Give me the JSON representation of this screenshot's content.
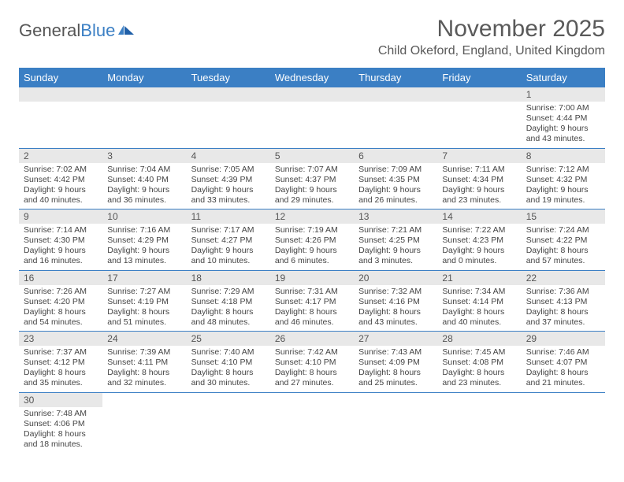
{
  "logo": {
    "text1": "General",
    "text2": "Blue"
  },
  "header": {
    "month": "November 2025",
    "location": "Child Okeford, England, United Kingdom"
  },
  "colors": {
    "header_bg": "#3b7fc4",
    "header_text": "#ffffff",
    "daynum_bg": "#e8e8e8",
    "row_border": "#3b7fc4",
    "body_text": "#444444"
  },
  "daynames": [
    "Sunday",
    "Monday",
    "Tuesday",
    "Wednesday",
    "Thursday",
    "Friday",
    "Saturday"
  ],
  "weeks": [
    [
      null,
      null,
      null,
      null,
      null,
      null,
      {
        "n": "1",
        "sr": "Sunrise: 7:00 AM",
        "ss": "Sunset: 4:44 PM",
        "d1": "Daylight: 9 hours",
        "d2": "and 43 minutes."
      }
    ],
    [
      {
        "n": "2",
        "sr": "Sunrise: 7:02 AM",
        "ss": "Sunset: 4:42 PM",
        "d1": "Daylight: 9 hours",
        "d2": "and 40 minutes."
      },
      {
        "n": "3",
        "sr": "Sunrise: 7:04 AM",
        "ss": "Sunset: 4:40 PM",
        "d1": "Daylight: 9 hours",
        "d2": "and 36 minutes."
      },
      {
        "n": "4",
        "sr": "Sunrise: 7:05 AM",
        "ss": "Sunset: 4:39 PM",
        "d1": "Daylight: 9 hours",
        "d2": "and 33 minutes."
      },
      {
        "n": "5",
        "sr": "Sunrise: 7:07 AM",
        "ss": "Sunset: 4:37 PM",
        "d1": "Daylight: 9 hours",
        "d2": "and 29 minutes."
      },
      {
        "n": "6",
        "sr": "Sunrise: 7:09 AM",
        "ss": "Sunset: 4:35 PM",
        "d1": "Daylight: 9 hours",
        "d2": "and 26 minutes."
      },
      {
        "n": "7",
        "sr": "Sunrise: 7:11 AM",
        "ss": "Sunset: 4:34 PM",
        "d1": "Daylight: 9 hours",
        "d2": "and 23 minutes."
      },
      {
        "n": "8",
        "sr": "Sunrise: 7:12 AM",
        "ss": "Sunset: 4:32 PM",
        "d1": "Daylight: 9 hours",
        "d2": "and 19 minutes."
      }
    ],
    [
      {
        "n": "9",
        "sr": "Sunrise: 7:14 AM",
        "ss": "Sunset: 4:30 PM",
        "d1": "Daylight: 9 hours",
        "d2": "and 16 minutes."
      },
      {
        "n": "10",
        "sr": "Sunrise: 7:16 AM",
        "ss": "Sunset: 4:29 PM",
        "d1": "Daylight: 9 hours",
        "d2": "and 13 minutes."
      },
      {
        "n": "11",
        "sr": "Sunrise: 7:17 AM",
        "ss": "Sunset: 4:27 PM",
        "d1": "Daylight: 9 hours",
        "d2": "and 10 minutes."
      },
      {
        "n": "12",
        "sr": "Sunrise: 7:19 AM",
        "ss": "Sunset: 4:26 PM",
        "d1": "Daylight: 9 hours",
        "d2": "and 6 minutes."
      },
      {
        "n": "13",
        "sr": "Sunrise: 7:21 AM",
        "ss": "Sunset: 4:25 PM",
        "d1": "Daylight: 9 hours",
        "d2": "and 3 minutes."
      },
      {
        "n": "14",
        "sr": "Sunrise: 7:22 AM",
        "ss": "Sunset: 4:23 PM",
        "d1": "Daylight: 9 hours",
        "d2": "and 0 minutes."
      },
      {
        "n": "15",
        "sr": "Sunrise: 7:24 AM",
        "ss": "Sunset: 4:22 PM",
        "d1": "Daylight: 8 hours",
        "d2": "and 57 minutes."
      }
    ],
    [
      {
        "n": "16",
        "sr": "Sunrise: 7:26 AM",
        "ss": "Sunset: 4:20 PM",
        "d1": "Daylight: 8 hours",
        "d2": "and 54 minutes."
      },
      {
        "n": "17",
        "sr": "Sunrise: 7:27 AM",
        "ss": "Sunset: 4:19 PM",
        "d1": "Daylight: 8 hours",
        "d2": "and 51 minutes."
      },
      {
        "n": "18",
        "sr": "Sunrise: 7:29 AM",
        "ss": "Sunset: 4:18 PM",
        "d1": "Daylight: 8 hours",
        "d2": "and 48 minutes."
      },
      {
        "n": "19",
        "sr": "Sunrise: 7:31 AM",
        "ss": "Sunset: 4:17 PM",
        "d1": "Daylight: 8 hours",
        "d2": "and 46 minutes."
      },
      {
        "n": "20",
        "sr": "Sunrise: 7:32 AM",
        "ss": "Sunset: 4:16 PM",
        "d1": "Daylight: 8 hours",
        "d2": "and 43 minutes."
      },
      {
        "n": "21",
        "sr": "Sunrise: 7:34 AM",
        "ss": "Sunset: 4:14 PM",
        "d1": "Daylight: 8 hours",
        "d2": "and 40 minutes."
      },
      {
        "n": "22",
        "sr": "Sunrise: 7:36 AM",
        "ss": "Sunset: 4:13 PM",
        "d1": "Daylight: 8 hours",
        "d2": "and 37 minutes."
      }
    ],
    [
      {
        "n": "23",
        "sr": "Sunrise: 7:37 AM",
        "ss": "Sunset: 4:12 PM",
        "d1": "Daylight: 8 hours",
        "d2": "and 35 minutes."
      },
      {
        "n": "24",
        "sr": "Sunrise: 7:39 AM",
        "ss": "Sunset: 4:11 PM",
        "d1": "Daylight: 8 hours",
        "d2": "and 32 minutes."
      },
      {
        "n": "25",
        "sr": "Sunrise: 7:40 AM",
        "ss": "Sunset: 4:10 PM",
        "d1": "Daylight: 8 hours",
        "d2": "and 30 minutes."
      },
      {
        "n": "26",
        "sr": "Sunrise: 7:42 AM",
        "ss": "Sunset: 4:10 PM",
        "d1": "Daylight: 8 hours",
        "d2": "and 27 minutes."
      },
      {
        "n": "27",
        "sr": "Sunrise: 7:43 AM",
        "ss": "Sunset: 4:09 PM",
        "d1": "Daylight: 8 hours",
        "d2": "and 25 minutes."
      },
      {
        "n": "28",
        "sr": "Sunrise: 7:45 AM",
        "ss": "Sunset: 4:08 PM",
        "d1": "Daylight: 8 hours",
        "d2": "and 23 minutes."
      },
      {
        "n": "29",
        "sr": "Sunrise: 7:46 AM",
        "ss": "Sunset: 4:07 PM",
        "d1": "Daylight: 8 hours",
        "d2": "and 21 minutes."
      }
    ],
    [
      {
        "n": "30",
        "sr": "Sunrise: 7:48 AM",
        "ss": "Sunset: 4:06 PM",
        "d1": "Daylight: 8 hours",
        "d2": "and 18 minutes."
      },
      null,
      null,
      null,
      null,
      null,
      null
    ]
  ]
}
